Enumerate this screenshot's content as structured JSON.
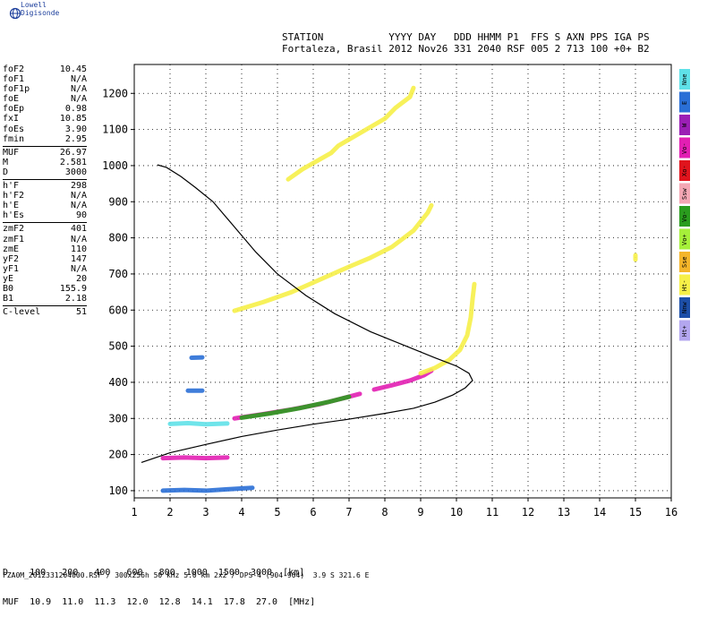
{
  "brand": {
    "name": "Lowell Digisonde",
    "icon": "globe-icon"
  },
  "header": {
    "line1": "STATION           YYYY DAY   DDD HHMM P1  FFS S AXN PPS IGA PS",
    "line2": "Fortaleza, Brasil 2012 Nov26 331 2040 RSF 005 2 713 100 +0+ B2"
  },
  "params_group1": [
    {
      "k": "foF2",
      "v": "10.45"
    },
    {
      "k": "foF1",
      "v": "N/A"
    },
    {
      "k": "foF1p",
      "v": "N/A"
    },
    {
      "k": "foE",
      "v": "N/A"
    },
    {
      "k": "foEp",
      "v": "0.98"
    },
    {
      "k": "fxI",
      "v": "10.85"
    },
    {
      "k": "foEs",
      "v": "3.90"
    },
    {
      "k": "fmin",
      "v": "2.95"
    }
  ],
  "params_group2": [
    {
      "k": "MUF",
      "v": "26.97"
    },
    {
      "k": "M",
      "v": "2.581"
    },
    {
      "k": "D",
      "v": "3000"
    }
  ],
  "params_group3": [
    {
      "k": "h'F",
      "v": "298"
    },
    {
      "k": "h'F2",
      "v": "N/A"
    },
    {
      "k": "h'E",
      "v": "N/A"
    },
    {
      "k": "h'Es",
      "v": "90"
    }
  ],
  "params_group4": [
    {
      "k": "zmF2",
      "v": "401"
    },
    {
      "k": "zmF1",
      "v": "N/A"
    },
    {
      "k": "zmE",
      "v": "110"
    },
    {
      "k": "yF2",
      "v": "147"
    },
    {
      "k": "yF1",
      "v": "N/A"
    },
    {
      "k": "yE",
      "v": "20"
    },
    {
      "k": "B0",
      "v": "155.9"
    },
    {
      "k": "B1",
      "v": "2.18"
    }
  ],
  "params_group5": [
    {
      "k": "C-level",
      "v": "51"
    }
  ],
  "muf_table": {
    "d_row": "D    100   200   400   600   800  1000  1500  3000  [km]",
    "muf_row": "MUF  10.9  11.0  11.3  12.0  12.8  14.1  17.8  27.0  [MHz]"
  },
  "footer": "FZA0M_2012331204000.RSF / 300x256h 50 kHz 5.0 km 2x2 / DPS-4 (904-904)  3.9 S 321.6 E",
  "legend": [
    {
      "label": "Nne",
      "color": "#5fe1e8"
    },
    {
      "label": "E",
      "color": "#2a6fd6"
    },
    {
      "label": "W",
      "color": "#9b1fb5"
    },
    {
      "label": "Vo-",
      "color": "#e21fb3"
    },
    {
      "label": "Xo-",
      "color": "#e0141d"
    },
    {
      "label": "Ssw",
      "color": "#f4a7b4"
    },
    {
      "label": "Vo-",
      "color": "#2a9c1e"
    },
    {
      "label": "Vo+",
      "color": "#a6f03a"
    },
    {
      "label": "Sse",
      "color": "#f4b52a"
    },
    {
      "label": "Ht-",
      "color": "#f6f048"
    },
    {
      "label": "Nnw",
      "color": "#1d4fa8"
    },
    {
      "label": "Ht+",
      "color": "#b3a6ef"
    }
  ],
  "chart_data": {
    "type": "scatter",
    "xlim": [
      1,
      16
    ],
    "ylim": [
      80,
      1280
    ],
    "x_ticks": [
      1,
      2,
      3,
      4,
      5,
      6,
      7,
      8,
      9,
      10,
      11,
      12,
      13,
      14,
      15,
      16
    ],
    "y_ticks": [
      100,
      200,
      300,
      400,
      500,
      600,
      700,
      800,
      900,
      1000,
      1100,
      1200
    ],
    "grid": true,
    "profile_curve": {
      "name": "",
      "points": [
        [
          1.2,
          178
        ],
        [
          2.0,
          205
        ],
        [
          3.0,
          228
        ],
        [
          4.0,
          250
        ],
        [
          5.0,
          268
        ],
        [
          6.0,
          284
        ],
        [
          7.0,
          298
        ],
        [
          8.0,
          314
        ],
        [
          8.8,
          328
        ],
        [
          9.4,
          345
        ],
        [
          9.9,
          365
        ],
        [
          10.25,
          385
        ],
        [
          10.45,
          405
        ],
        [
          10.35,
          425
        ],
        [
          10.0,
          445
        ],
        [
          9.4,
          468
        ],
        [
          8.6,
          500
        ],
        [
          7.6,
          540
        ],
        [
          6.6,
          590
        ],
        [
          5.8,
          640
        ],
        [
          5.0,
          700
        ],
        [
          4.4,
          760
        ],
        [
          3.8,
          830
        ],
        [
          3.2,
          900
        ],
        [
          2.7,
          940
        ],
        [
          2.3,
          970
        ],
        [
          1.9,
          995
        ],
        [
          1.65,
          1002
        ]
      ]
    },
    "traces": [
      {
        "color": "#e21fb3",
        "points": [
          [
            3.8,
            300
          ],
          [
            4.6,
            312
          ],
          [
            5.4,
            325
          ],
          [
            6.2,
            340
          ],
          [
            6.8,
            355
          ],
          [
            7.3,
            368
          ]
        ]
      },
      {
        "color": "#2a9c1e",
        "points": [
          [
            4.0,
            302
          ],
          [
            4.8,
            314
          ],
          [
            5.6,
            328
          ],
          [
            6.4,
            345
          ],
          [
            7.0,
            360
          ]
        ]
      },
      {
        "color": "#e21fb3",
        "points": [
          [
            7.7,
            380
          ],
          [
            8.2,
            392
          ],
          [
            8.7,
            405
          ],
          [
            9.1,
            420
          ],
          [
            9.3,
            432
          ]
        ]
      },
      {
        "color": "#f6f048",
        "points": [
          [
            9.0,
            425
          ],
          [
            9.4,
            440
          ],
          [
            9.8,
            462
          ],
          [
            10.1,
            490
          ],
          [
            10.3,
            530
          ],
          [
            10.4,
            580
          ],
          [
            10.45,
            630
          ],
          [
            10.5,
            672
          ]
        ]
      },
      {
        "color": "#f6f048",
        "points": [
          [
            3.8,
            598
          ],
          [
            4.6,
            622
          ],
          [
            5.4,
            650
          ],
          [
            6.2,
            685
          ],
          [
            7.0,
            720
          ],
          [
            7.6,
            745
          ],
          [
            8.2,
            775
          ],
          [
            8.8,
            820
          ],
          [
            9.2,
            870
          ],
          [
            9.3,
            890
          ]
        ]
      },
      {
        "color": "#f6f048",
        "points": [
          [
            5.3,
            962
          ],
          [
            5.7,
            990
          ],
          [
            6.5,
            1035
          ],
          [
            6.7,
            1055
          ],
          [
            8.0,
            1130
          ],
          [
            8.3,
            1160
          ],
          [
            8.7,
            1190
          ],
          [
            8.8,
            1215
          ]
        ]
      },
      {
        "color": "#2a6fd6",
        "points": [
          [
            1.8,
            100
          ],
          [
            2.4,
            102
          ],
          [
            3.0,
            100
          ],
          [
            3.6,
            104
          ],
          [
            4.3,
            108
          ]
        ]
      },
      {
        "color": "#e21fb3",
        "points": [
          [
            1.8,
            190
          ],
          [
            2.4,
            192
          ],
          [
            3.0,
            190
          ],
          [
            3.6,
            192
          ]
        ]
      },
      {
        "color": "#5fe1e8",
        "points": [
          [
            2.0,
            285
          ],
          [
            2.5,
            287
          ],
          [
            3.0,
            284
          ],
          [
            3.6,
            286
          ]
        ]
      },
      {
        "color": "#2a6fd6",
        "points": [
          [
            2.5,
            377
          ],
          [
            2.9,
            377
          ]
        ]
      },
      {
        "color": "#2a6fd6",
        "points": [
          [
            2.6,
            468
          ],
          [
            2.9,
            469
          ]
        ]
      },
      {
        "color": "#f6f048",
        "points": [
          [
            15.0,
            740
          ],
          [
            15.0,
            752
          ]
        ]
      }
    ]
  }
}
